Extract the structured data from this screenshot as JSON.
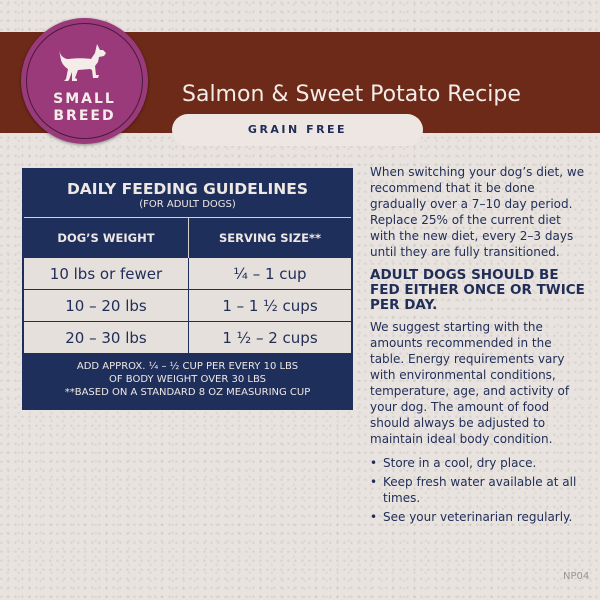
{
  "header": {
    "badge_line1": "SMALL",
    "badge_line2": "BREED",
    "title": "Salmon & Sweet Potato Recipe",
    "tag": "GRAIN FREE",
    "badge_icon": "dog-icon"
  },
  "table": {
    "title": "DAILY FEEDING GUIDELINES",
    "subtitle": "(FOR ADULT DOGS)",
    "columns": [
      "DOG’S WEIGHT",
      "SERVING SIZE**"
    ],
    "rows": [
      [
        "10 lbs or fewer",
        "¼ – 1 cup"
      ],
      [
        "10 – 20 lbs",
        "1 – 1 ½ cups"
      ],
      [
        "20 – 30 lbs",
        "1 ½ – 2 cups"
      ]
    ],
    "note1": "ADD APPROX. ¼ – ½ CUP PER EVERY 10 LBS",
    "note2": "OF BODY WEIGHT OVER 30 LBS",
    "note3": "**BASED ON A STANDARD 8 OZ MEASURING CUP"
  },
  "side": {
    "intro": "When switching your dog’s diet, we recommend that it be done gradually over a 7–10 day period. Replace 25% of the current diet with the new diet, every 2–3 days until they are fully transitioned.",
    "heading": "ADULT DOGS SHOULD BE FED EITHER ONCE OR TWICE PER DAY.",
    "body": "We suggest starting with the amounts recommended in the table. Energy requirements vary with environmental conditions, temperature, age, and activity of your dog. The amount of food should always be adjusted to maintain ideal body condition.",
    "bullets": [
      "Store in a cool, dry place.",
      "Keep fresh water available at all times.",
      "See your veterinarian regularly."
    ]
  },
  "code": "NP04",
  "colors": {
    "band": "#6d2a19",
    "badge": "#9b3a7b",
    "navy": "#1f2f5c"
  }
}
